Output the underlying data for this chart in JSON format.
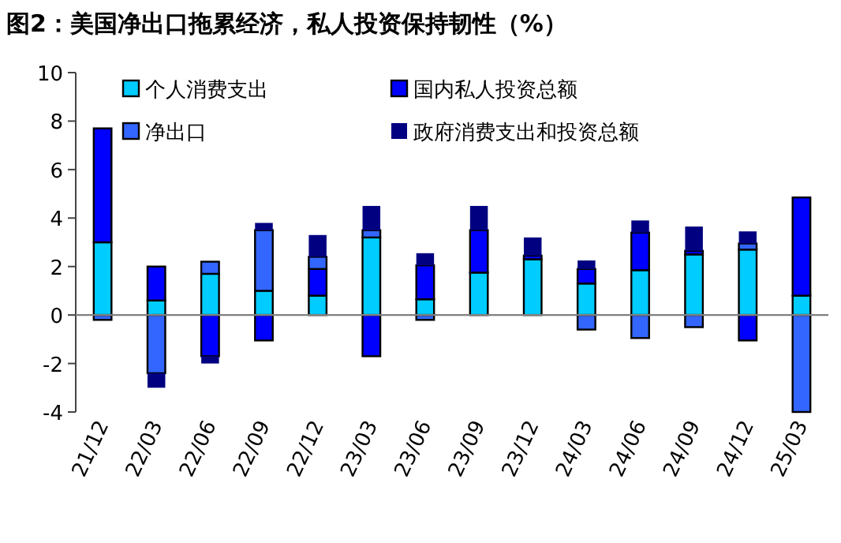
{
  "chart_data": {
    "type": "bar",
    "stacked": true,
    "title": "图2：美国净出口拖累经济，私人投资保持韧性（%）",
    "categories": [
      "21/12",
      "22/03",
      "22/06",
      "22/09",
      "22/12",
      "23/03",
      "23/06",
      "23/09",
      "23/12",
      "24/03",
      "24/06",
      "24/09",
      "24/12",
      "25/03"
    ],
    "series": [
      {
        "name": "个人消费支出",
        "color": "#00ccff",
        "values": [
          3.0,
          0.6,
          1.7,
          1.0,
          0.8,
          3.2,
          0.65,
          1.75,
          2.3,
          1.3,
          1.85,
          2.5,
          2.7,
          0.8
        ]
      },
      {
        "name": "国内私人投资总额",
        "color": "#0000ff",
        "values": [
          4.7,
          1.4,
          -1.7,
          -1.05,
          1.1,
          -1.7,
          1.4,
          1.75,
          0.15,
          0.6,
          1.55,
          0.15,
          -1.05,
          4.05
        ]
      },
      {
        "name": "净出口",
        "color": "#3366ff",
        "values": [
          -0.2,
          -2.4,
          0.5,
          2.5,
          0.5,
          0.3,
          -0.2,
          null,
          null,
          -0.6,
          -0.95,
          -0.5,
          0.25,
          -4.0
        ]
      },
      {
        "name": "政府消费支出和投资总额",
        "color": "#000080",
        "values": [
          null,
          -0.6,
          -0.3,
          0.3,
          0.9,
          1.0,
          0.5,
          1.0,
          0.75,
          0.35,
          0.5,
          1.0,
          0.5,
          null
        ]
      }
    ],
    "ylim": [
      -4,
      10
    ],
    "yticks": [
      -4,
      -2,
      0,
      2,
      4,
      6,
      8,
      10
    ],
    "legend": "top left"
  }
}
